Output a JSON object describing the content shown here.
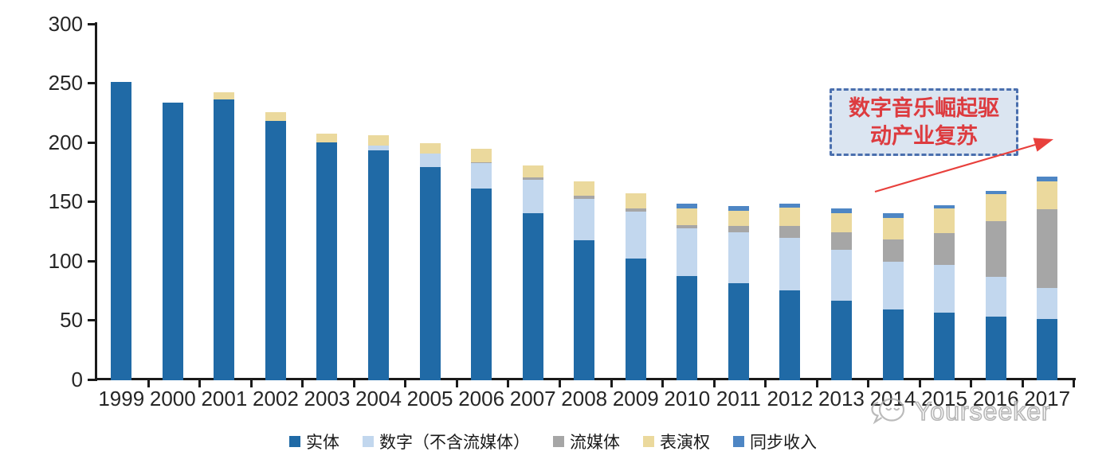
{
  "chart_data": {
    "type": "bar",
    "stacked": true,
    "title": "",
    "xlabel": "",
    "ylabel": "",
    "categories": [
      "1999",
      "2000",
      "2001",
      "2002",
      "2003",
      "2004",
      "2005",
      "2006",
      "2007",
      "2008",
      "2009",
      "2010",
      "2011",
      "2012",
      "2013",
      "2014",
      "2015",
      "2016",
      "2017"
    ],
    "series": [
      {
        "name": "实体",
        "color": "#206aa6",
        "values": [
          252,
          234,
          237,
          219,
          201,
          194,
          180,
          162,
          141,
          118,
          103,
          88,
          82,
          76,
          67,
          60,
          57,
          54,
          52
        ]
      },
      {
        "name": "数字（不含流媒体）",
        "color": "#c2d7ee",
        "values": [
          0,
          0,
          0,
          0,
          0,
          4,
          11,
          21,
          28,
          35,
          39,
          40,
          43,
          44,
          43,
          40,
          40,
          33,
          26
        ]
      },
      {
        "name": "流媒体",
        "color": "#a6a6a6",
        "values": [
          0,
          0,
          0,
          0,
          0,
          0,
          0,
          1,
          2,
          3,
          3,
          3,
          5,
          10,
          15,
          19,
          27,
          47,
          66
        ]
      },
      {
        "name": "表演权",
        "color": "#ebd99d",
        "values": [
          0,
          0,
          6,
          7,
          7,
          9,
          9,
          11,
          10,
          12,
          13,
          14,
          13,
          16,
          16,
          18,
          21,
          23,
          24
        ]
      },
      {
        "name": "同步收入",
        "color": "#4e86c4",
        "values": [
          0,
          0,
          0,
          0,
          0,
          0,
          0,
          0,
          0,
          0,
          0,
          4,
          4,
          3,
          4,
          4,
          3,
          3,
          4
        ]
      }
    ],
    "ylim": [
      0,
      300
    ],
    "yticks": [
      0,
      50,
      100,
      150,
      200,
      250,
      300
    ],
    "grid": false,
    "legend_position": "bottom"
  },
  "annotation": {
    "line1": "数字音乐崛起驱",
    "line2": "动产业复苏",
    "text_color": "#dd3b3f",
    "box_fill": "#dbe5f1",
    "box_border": "#4a6fae",
    "arrow_color": "#e8403c"
  },
  "watermark": {
    "text": "Yourseeker"
  }
}
